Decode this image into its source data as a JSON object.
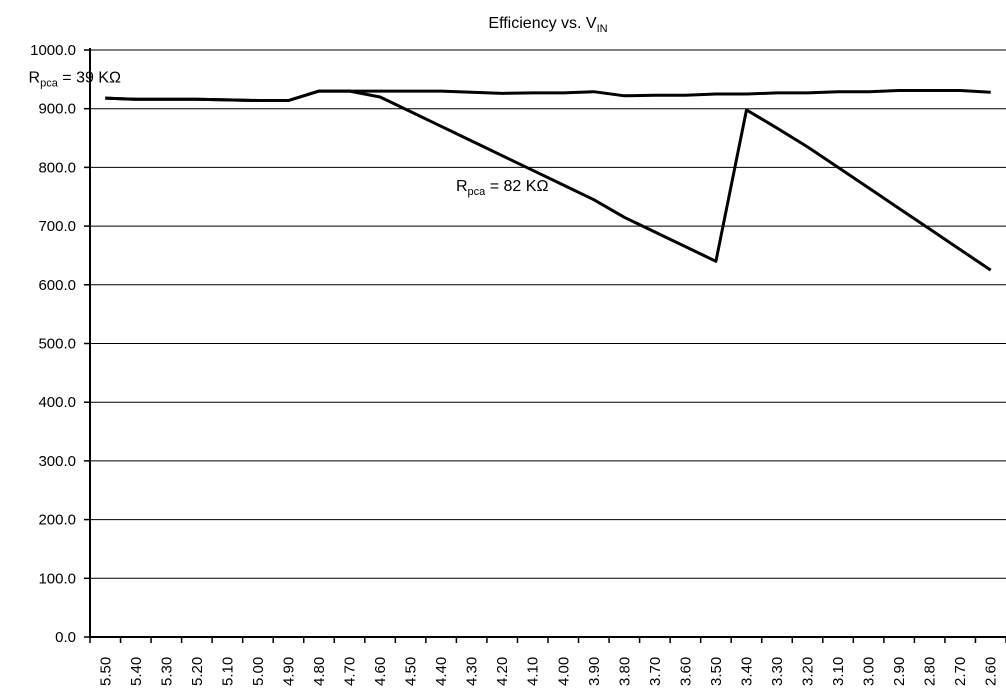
{
  "chart_data": {
    "type": "line",
    "title": {
      "main": "Efficiency vs. V",
      "sub": "IN"
    },
    "xlabel": "",
    "ylabel": "",
    "ylim": [
      0,
      1000
    ],
    "y_ticks": [
      "0.0",
      "100.0",
      "200.0",
      "300.0",
      "400.0",
      "500.0",
      "600.0",
      "700.0",
      "800.0",
      "900.0",
      "1000.0"
    ],
    "categories": [
      "5.50",
      "5.40",
      "5.30",
      "5.20",
      "5.10",
      "5.00",
      "4.90",
      "4.80",
      "4.70",
      "4.60",
      "4.50",
      "4.40",
      "4.30",
      "4.20",
      "4.10",
      "4.00",
      "3.90",
      "3.80",
      "3.70",
      "3.60",
      "3.50",
      "3.40",
      "3.30",
      "3.20",
      "3.10",
      "3.00",
      "2.90",
      "2.80",
      "2.70",
      "2.60"
    ],
    "grid": true,
    "legend": "none",
    "series": [
      {
        "values": [
          918,
          916,
          916,
          916,
          915,
          914,
          914,
          930,
          930,
          930,
          930,
          930,
          928,
          926,
          927,
          927,
          929,
          922,
          923,
          923,
          925,
          925,
          927,
          927,
          929,
          929,
          931,
          931,
          931,
          928
        ]
      },
      {
        "values": [
          918,
          916,
          916,
          916,
          915,
          914,
          914,
          930,
          930,
          920,
          895,
          870,
          845,
          820,
          795,
          770,
          745,
          715,
          690,
          665,
          640,
          898,
          867,
          835,
          800,
          765,
          730,
          695,
          660,
          625
        ]
      }
    ],
    "annotations": [
      {
        "text": "R",
        "sub": "pca",
        "tail": " = 39 KΩ",
        "x": "4.05",
        "y": 945
      },
      {
        "text": "R",
        "sub": "pca",
        "tail": " = 82 KΩ",
        "x": "4.20",
        "y": 760
      }
    ],
    "line_color": "#000000"
  }
}
